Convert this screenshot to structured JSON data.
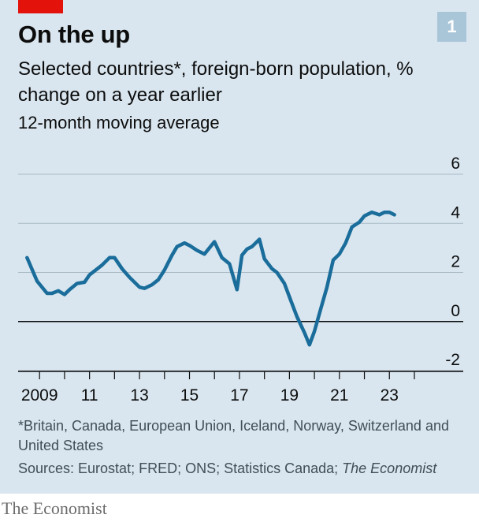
{
  "header": {
    "title": "On the up",
    "badge": "1",
    "subtitle": "Selected countries*, foreign-born population, % change on a year earlier",
    "subtitle2": "12-month moving average"
  },
  "colors": {
    "accent_red": "#e3120b",
    "line": "#1a6d9b",
    "background": "#d9e6ef"
  },
  "chart_data": {
    "type": "line",
    "title": "On the up",
    "ylabel": "",
    "xlabel": "",
    "ylim": [
      -2,
      6
    ],
    "yticks": [
      -2,
      0,
      2,
      4,
      6
    ],
    "xlim": [
      2008.3,
      2024.6
    ],
    "xticks": [
      2008,
      2009,
      2010,
      2011,
      2012,
      2013,
      2014,
      2015,
      2016,
      2017,
      2018,
      2019,
      2020,
      2021,
      2022,
      2023,
      2024
    ],
    "xtick_labels": [
      {
        "year": 2009,
        "label": "2009"
      },
      {
        "year": 2011,
        "label": "11"
      },
      {
        "year": 2013,
        "label": "13"
      },
      {
        "year": 2015,
        "label": "15"
      },
      {
        "year": 2017,
        "label": "17"
      },
      {
        "year": 2019,
        "label": "19"
      },
      {
        "year": 2021,
        "label": "21"
      },
      {
        "year": 2023,
        "label": "23"
      }
    ],
    "grid": true,
    "series": [
      {
        "x": [
          2008.5,
          2008.9,
          2009.3,
          2009.5,
          2009.75,
          2010.0,
          2010.2,
          2010.5,
          2010.8,
          2011.0,
          2011.5,
          2011.8,
          2012.0,
          2012.3,
          2012.6,
          2013.0,
          2013.2,
          2013.5,
          2013.75,
          2014.0,
          2014.3,
          2014.5,
          2014.8,
          2015.0,
          2015.3,
          2015.6,
          2016.0,
          2016.3,
          2016.6,
          2016.9,
          2017.1,
          2017.3,
          2017.5,
          2017.8,
          2018.0,
          2018.3,
          2018.5,
          2018.8,
          2019.0,
          2019.3,
          2019.6,
          2019.8,
          2020.0,
          2020.25,
          2020.5,
          2020.75,
          2021.0,
          2021.25,
          2021.5,
          2021.8,
          2022.0,
          2022.3,
          2022.6,
          2022.8,
          2023.0,
          2023.2
        ],
        "values": [
          2.6,
          1.65,
          1.15,
          1.15,
          1.25,
          1.1,
          1.3,
          1.55,
          1.6,
          1.9,
          2.3,
          2.6,
          2.6,
          2.15,
          1.8,
          1.4,
          1.35,
          1.5,
          1.7,
          2.1,
          2.7,
          3.05,
          3.2,
          3.1,
          2.9,
          2.75,
          3.25,
          2.6,
          2.35,
          1.3,
          2.7,
          2.95,
          3.05,
          3.35,
          2.55,
          2.15,
          2.0,
          1.55,
          1.0,
          0.2,
          -0.45,
          -0.95,
          -0.4,
          0.5,
          1.4,
          2.5,
          2.75,
          3.2,
          3.85,
          4.05,
          4.3,
          4.45,
          4.35,
          4.45,
          4.45,
          4.35
        ]
      }
    ]
  },
  "footnote": "*Britain, Canada, European Union, Iceland, Norway, Switzerland and United States",
  "sources": {
    "text": "Sources: Eurostat; FRED; ONS; Statistics Canada; ",
    "italic": "The Economist"
  },
  "brand": "The Economist"
}
